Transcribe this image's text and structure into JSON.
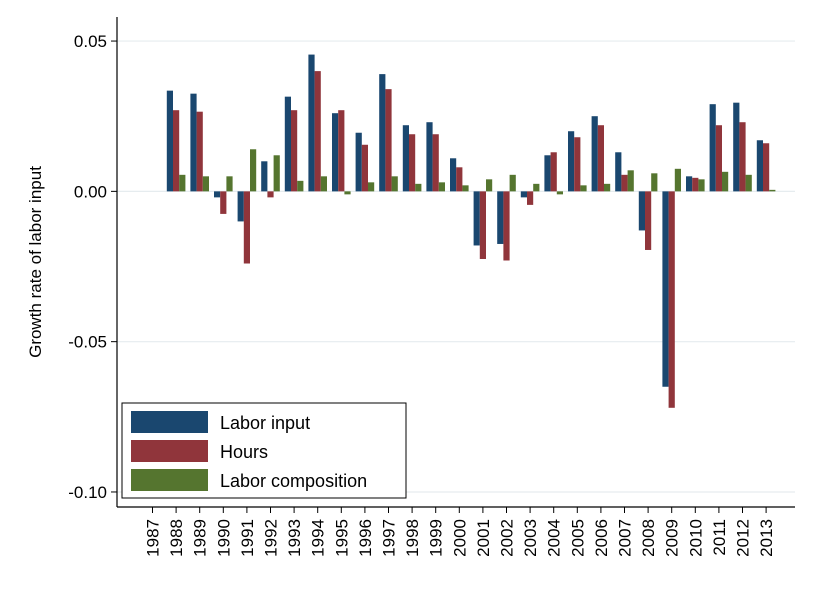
{
  "chart_data": {
    "type": "bar",
    "title": "",
    "xlabel": "",
    "ylabel": "Growth rate of labor input",
    "ylim": [
      -0.105,
      0.058
    ],
    "yticks": [
      0.05,
      0.0,
      -0.05,
      -0.1
    ],
    "ytick_labels": [
      "0.05",
      "0.00",
      "-0.05",
      "-0.10"
    ],
    "grid": true,
    "legend_position": "bottom-left",
    "categories": [
      "1987",
      "1988",
      "1989",
      "1990",
      "1991",
      "1992",
      "1993",
      "1994",
      "1995",
      "1996",
      "1997",
      "1998",
      "1999",
      "2000",
      "2001",
      "2002",
      "2003",
      "2004",
      "2005",
      "2006",
      "2007",
      "2008",
      "2009",
      "2010",
      "2011",
      "2012",
      "2013"
    ],
    "series": [
      {
        "name": "Labor input",
        "color": "#1a476f",
        "values": [
          null,
          0.0335,
          0.0325,
          -0.002,
          -0.01,
          0.01,
          0.0315,
          0.0455,
          0.026,
          0.0195,
          0.039,
          0.022,
          0.023,
          0.011,
          -0.018,
          -0.0175,
          -0.002,
          0.012,
          0.02,
          0.025,
          0.013,
          -0.013,
          -0.065,
          0.005,
          0.029,
          0.0295,
          0.017
        ]
      },
      {
        "name": "Hours",
        "color": "#90353b",
        "values": [
          null,
          0.027,
          0.0265,
          -0.0075,
          -0.024,
          -0.002,
          0.027,
          0.04,
          0.027,
          0.0155,
          0.034,
          0.019,
          0.019,
          0.008,
          -0.0225,
          -0.023,
          -0.0045,
          0.013,
          0.018,
          0.022,
          0.0055,
          -0.0195,
          -0.072,
          0.0045,
          0.022,
          0.023,
          0.016
        ]
      },
      {
        "name": "Labor composition",
        "color": "#55752f",
        "values": [
          null,
          0.0055,
          0.005,
          0.005,
          0.014,
          0.012,
          0.0035,
          0.005,
          -0.001,
          0.003,
          0.005,
          0.0025,
          0.003,
          0.002,
          0.004,
          0.0055,
          0.0025,
          -0.001,
          0.002,
          0.0025,
          0.007,
          0.006,
          0.0075,
          0.004,
          0.0065,
          0.0055,
          0.0005
        ]
      }
    ]
  }
}
